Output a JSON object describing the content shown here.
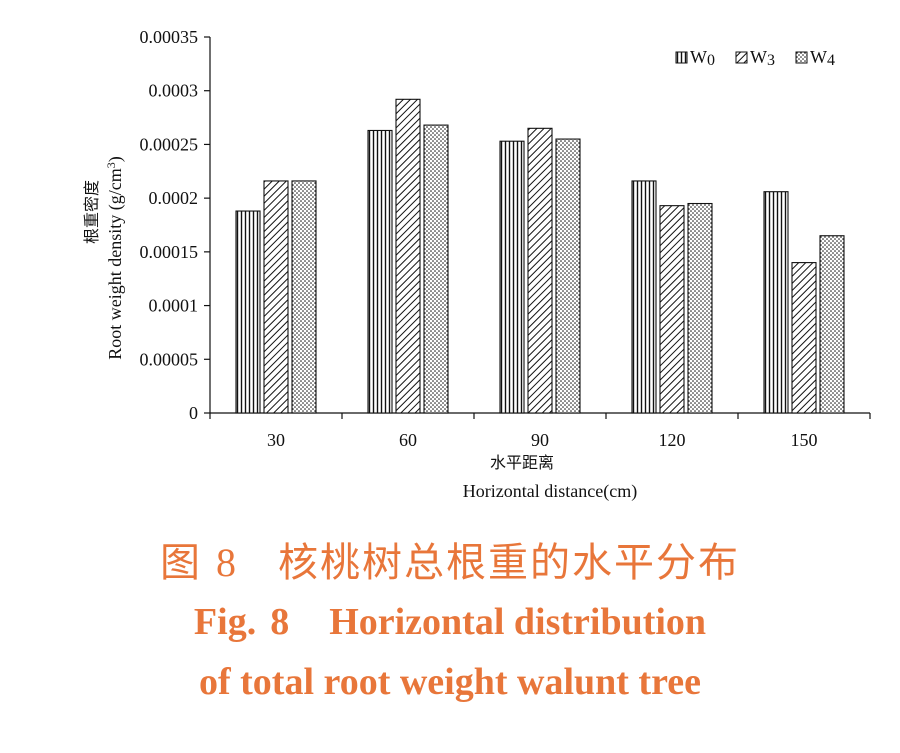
{
  "chart_data": {
    "type": "bar",
    "categories": [
      "30",
      "60",
      "90",
      "120",
      "150"
    ],
    "series": [
      {
        "name": "W0",
        "legend_main": "W",
        "legend_sub": "0",
        "pattern": "vertical-lines",
        "values": [
          0.000188,
          0.000263,
          0.000253,
          0.000216,
          0.000206
        ]
      },
      {
        "name": "W3",
        "legend_main": "W",
        "legend_sub": "3",
        "pattern": "diagonal-lines",
        "values": [
          0.000216,
          0.000292,
          0.000265,
          0.000193,
          0.00014
        ]
      },
      {
        "name": "W4",
        "legend_main": "W",
        "legend_sub": "4",
        "pattern": "dots",
        "values": [
          0.000216,
          0.000268,
          0.000255,
          0.000195,
          0.000165
        ]
      }
    ],
    "yticks": [
      "0",
      "0.00005",
      "0.0001",
      "0.00015",
      "0.0002",
      "0.00025",
      "0.0003",
      "0.00035"
    ],
    "ylim": [
      0,
      0.00035
    ],
    "ylabel_cn": "根重密度",
    "ylabel_en": "Root weight density (g/cm",
    "ylabel_sup": "3",
    "ylabel_close": ")",
    "xlabel_cn": "水平距离",
    "xlabel_en": "Horizontal distance(cm)",
    "legend_position": "top-right",
    "grid": false
  },
  "caption": {
    "cn_label": "图",
    "cn_num": "8",
    "cn_text": "核桃树总根重的水平分布",
    "en_line1_label": "Fig.",
    "en_line1_num": "8",
    "en_line1_text": "Horizontal distribution",
    "en_line2": "of total root weight walunt tree"
  },
  "colors": {
    "caption": "#e8763a",
    "ink": "#111111"
  }
}
